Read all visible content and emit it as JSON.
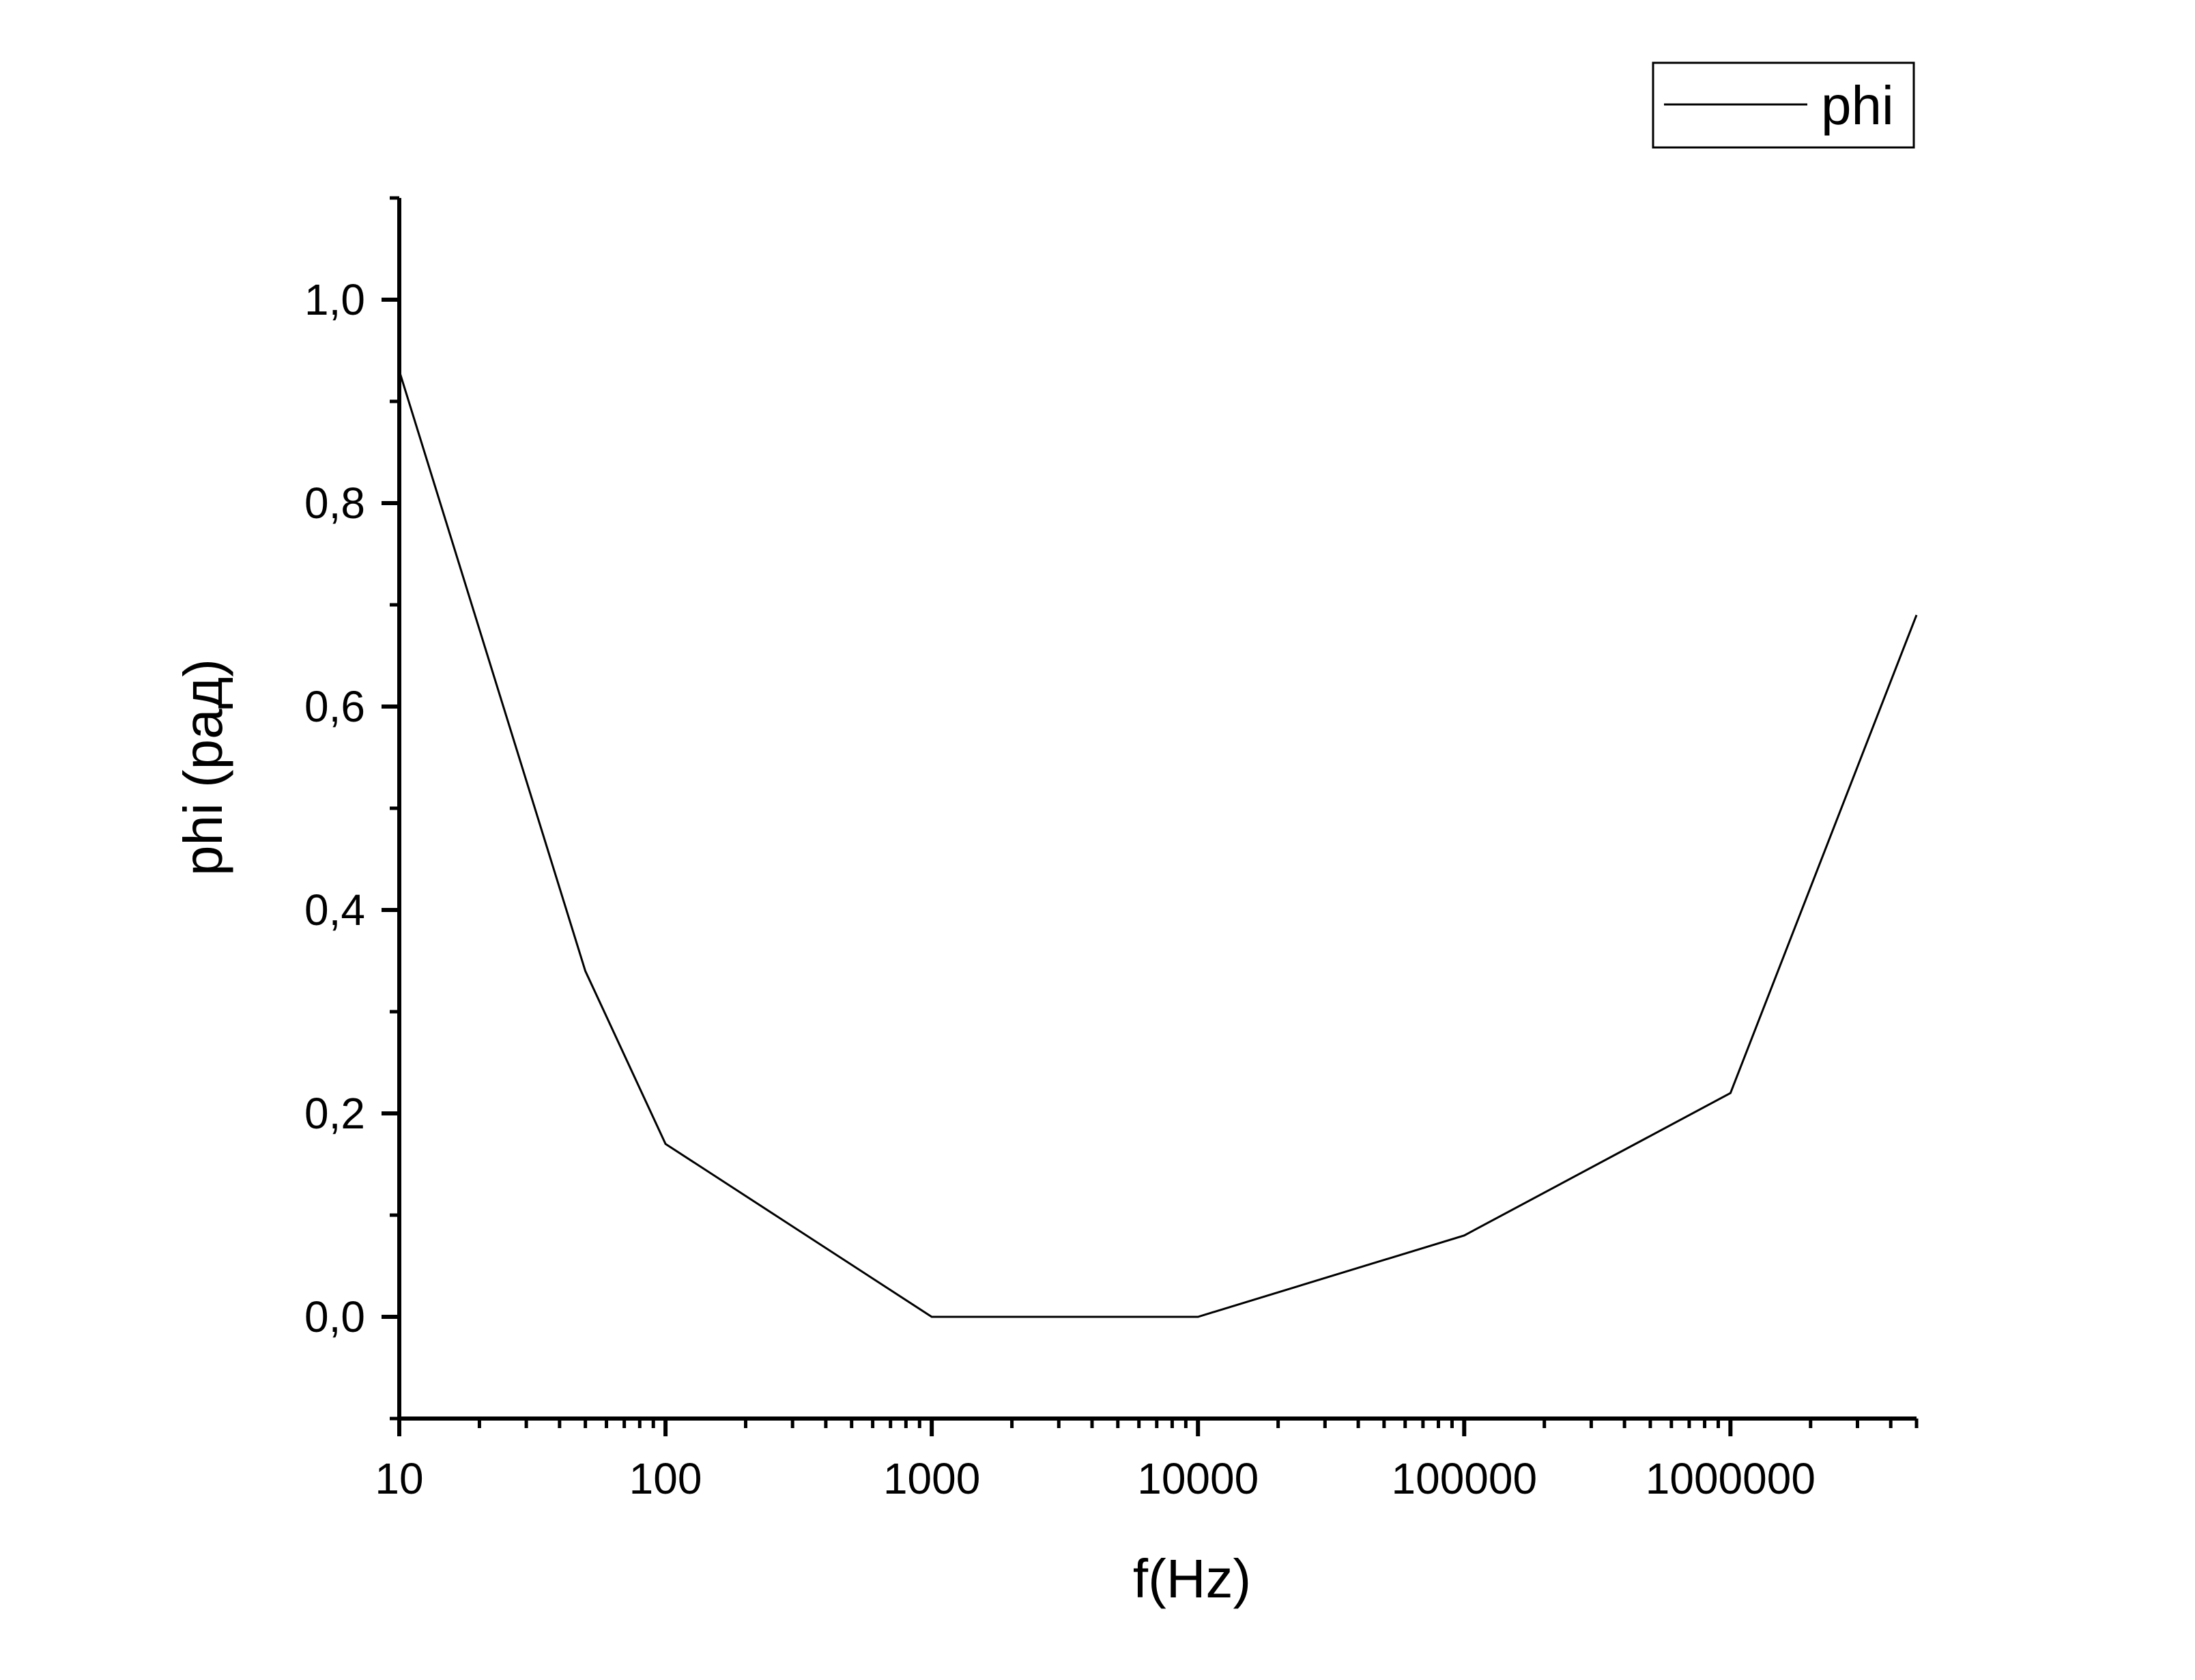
{
  "chart_data": {
    "type": "line",
    "title": "",
    "xlabel": "f(Hz)",
    "ylabel": "phi (рад)",
    "x_scale": "log",
    "xlim": [
      10,
      5000000
    ],
    "ylim": [
      -0.1,
      1.1
    ],
    "x_ticks": [
      "10",
      "100",
      "1000",
      "10000",
      "100000",
      "1000000"
    ],
    "x_tick_values": [
      10,
      100,
      1000,
      10000,
      100000,
      1000000
    ],
    "y_ticks": [
      "0,0",
      "0,2",
      "0,4",
      "0,6",
      "0,8",
      "1,0"
    ],
    "y_tick_values": [
      0,
      0.2,
      0.4,
      0.6,
      0.8,
      1.0
    ],
    "grid": false,
    "legend_position": "top-right",
    "series": [
      {
        "name": "phi",
        "color": "#000000",
        "x": [
          10,
          50,
          100,
          1000,
          10000,
          100000,
          1000000,
          5000000
        ],
        "y": [
          0.93,
          0.34,
          0.17,
          0.0,
          0.0,
          0.08,
          0.22,
          0.69
        ]
      }
    ]
  }
}
